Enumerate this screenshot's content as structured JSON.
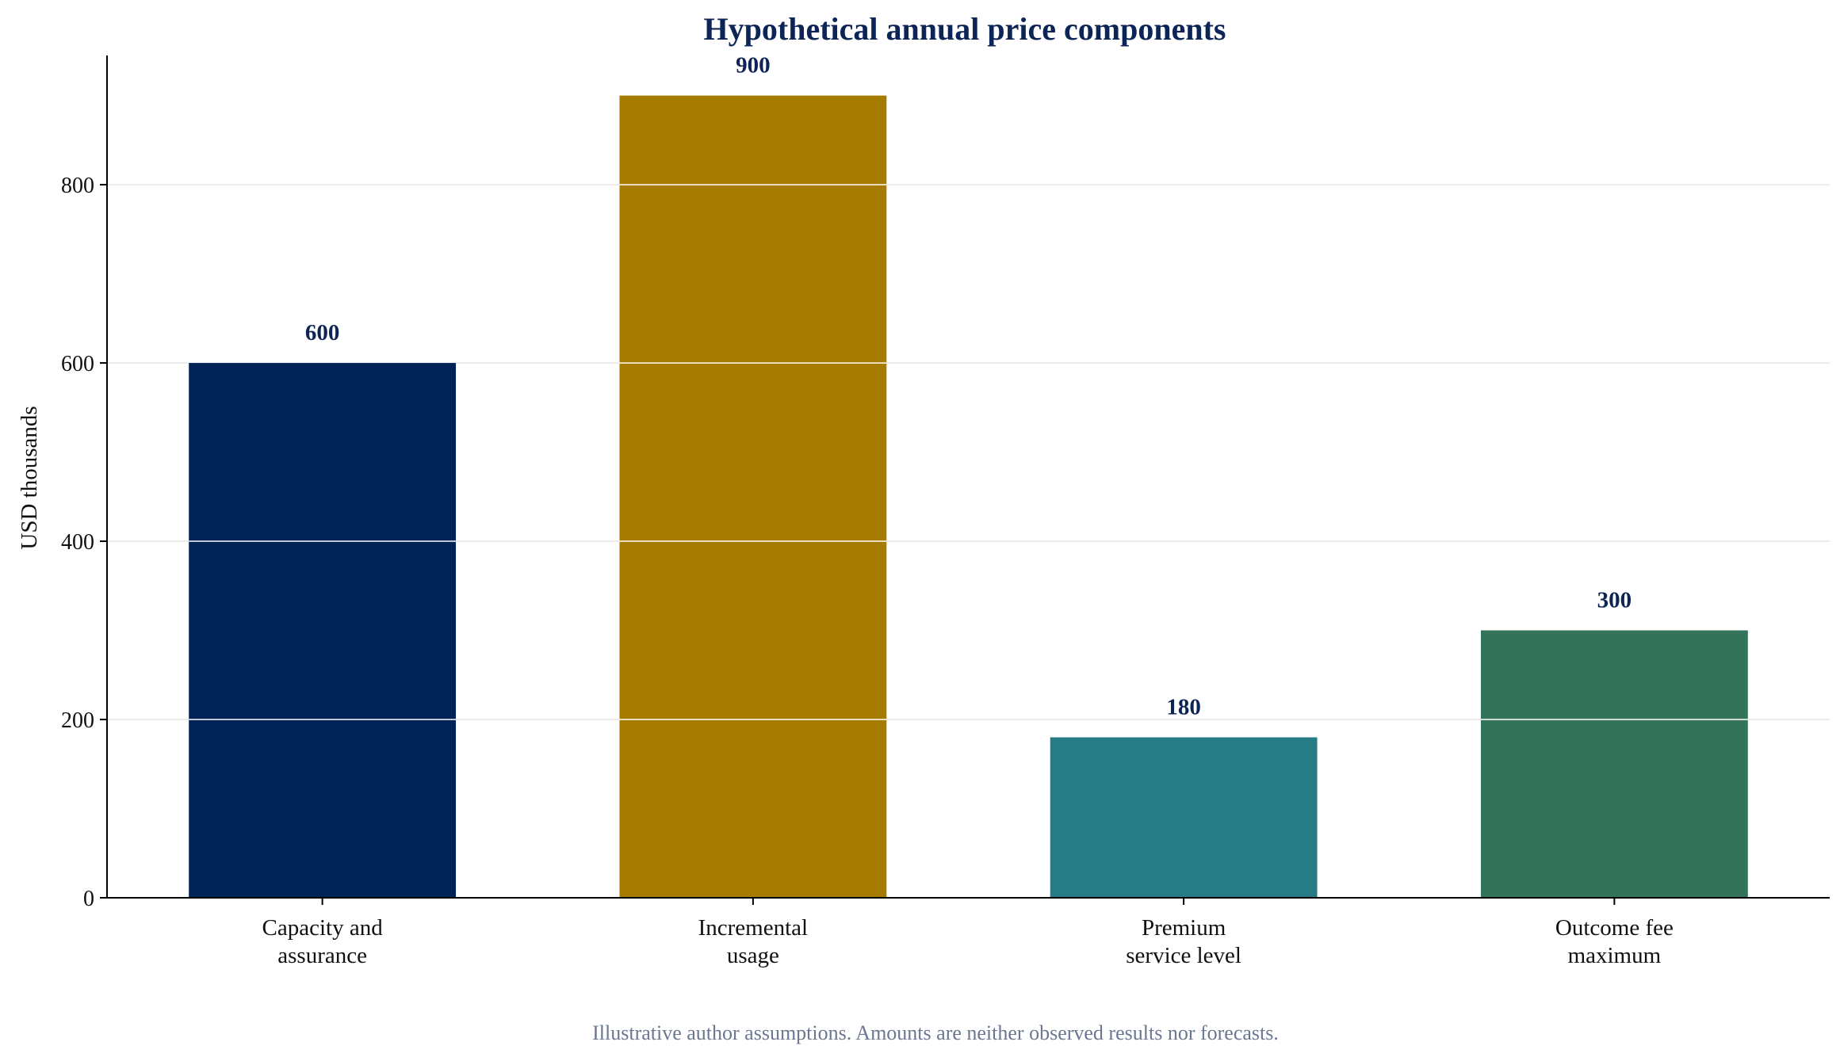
{
  "colors": {
    "title": "#0d2556",
    "value_label": "#0d2556",
    "footnote": "#6b7691",
    "axis": "#000000",
    "grid": "#e6e6e6",
    "bar_divider": "#ffffff"
  },
  "chart_data": {
    "type": "bar",
    "title": "Hypothetical annual price components",
    "xlabel": "",
    "ylabel": "USD thousands",
    "ylim": [
      0,
      945
    ],
    "yticks": [
      0,
      200,
      400,
      600,
      800
    ],
    "grid": "horizontal",
    "categories": [
      [
        "Capacity and",
        "assurance"
      ],
      [
        "Incremental",
        "usage"
      ],
      [
        "Premium",
        "service level"
      ],
      [
        "Outcome fee",
        "maximum"
      ]
    ],
    "values": [
      600,
      900,
      180,
      300
    ],
    "value_labels": [
      "600",
      "900",
      "180",
      "300"
    ],
    "bar_colors": [
      "#002356",
      "#a67c00",
      "#267b85",
      "#33735a"
    ],
    "footnote": "Illustrative author assumptions. Amounts are neither observed results nor forecasts."
  }
}
